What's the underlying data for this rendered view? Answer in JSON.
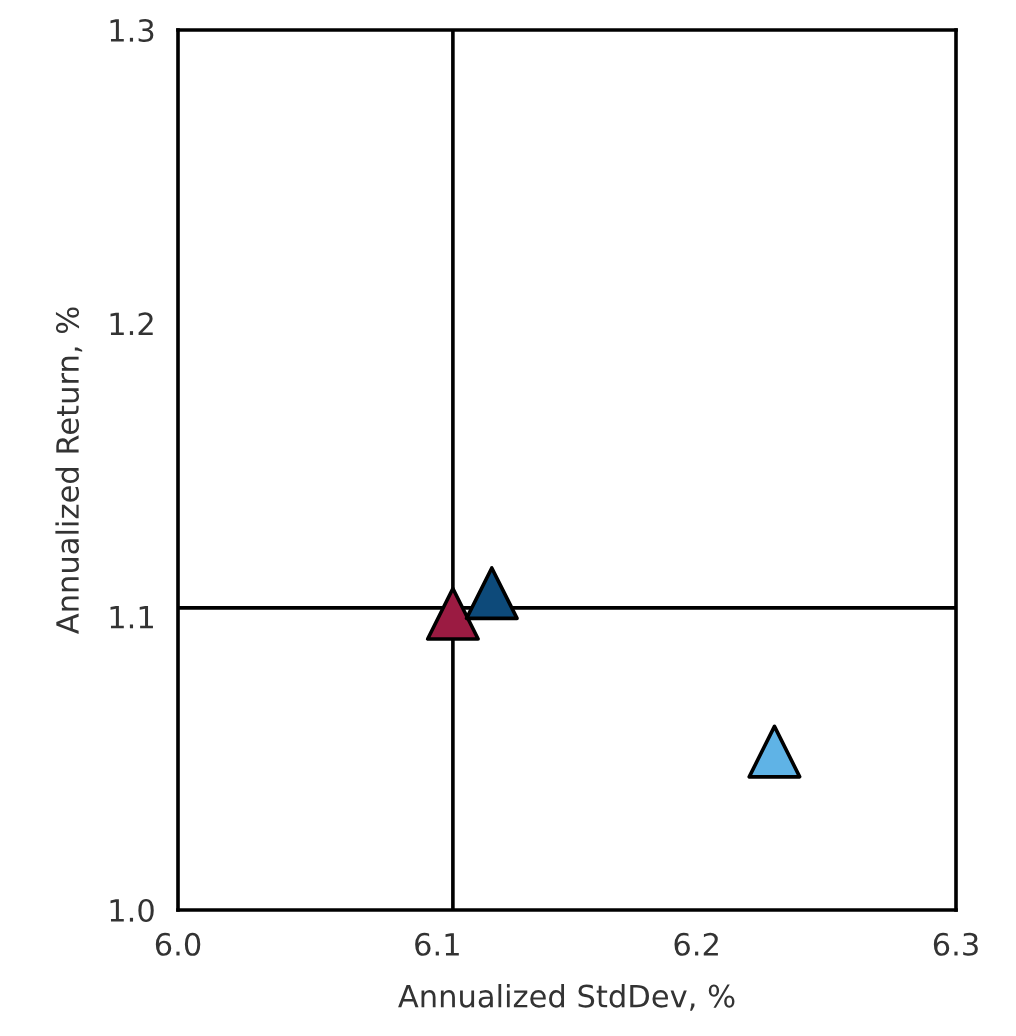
{
  "chart_data": {
    "type": "scatter",
    "xlabel": "Annualized StdDev, %",
    "ylabel": "Annualized Return, %",
    "x": [
      6.106,
      6.121,
      6.23
    ],
    "values": [
      1.101,
      1.108,
      1.054
    ],
    "colors": [
      "#9b1b42",
      "#0d4a7a",
      "#5fb3e6"
    ],
    "marker": "triangle",
    "xlim": [
      6.0,
      6.3
    ],
    "xticks": [
      {
        "value": 6.0,
        "label": "6.0"
      },
      6.1,
      6.2,
      6.3
    ],
    "ylim": [
      1.0,
      1.3
    ],
    "yticks": [
      {
        "value": 1.0,
        "label": "1.0"
      },
      1.1,
      1.2,
      1.3
    ],
    "ref_lines": [
      {
        "axis": "x",
        "value": 6.106,
        "color": "#000000"
      },
      {
        "axis": "y",
        "value": 1.103,
        "color": "#000000"
      }
    ],
    "grid": false
  }
}
